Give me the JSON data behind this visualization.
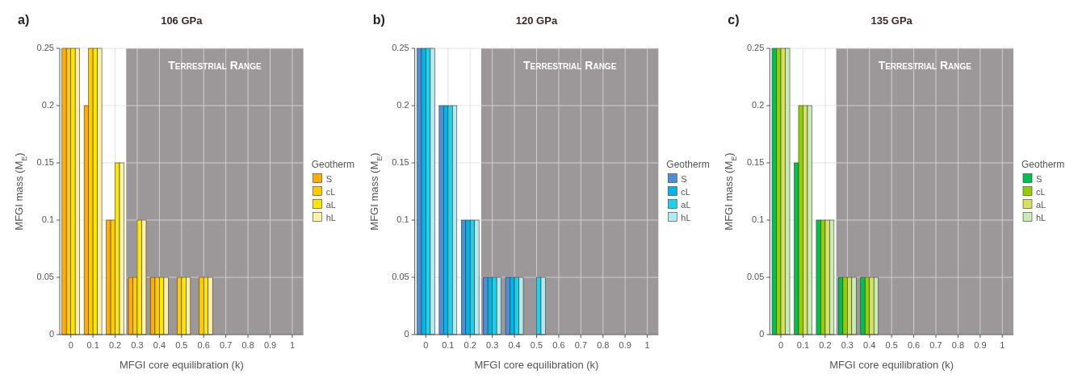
{
  "chart_data": [
    {
      "type": "bar",
      "title": "106 GPa",
      "annotations": [
        "a)"
      ],
      "xlabel": "MFGI core equilibration (k)",
      "ylabel": "MFGI mass (M$_{E}$)",
      "legend_title": "Geotherm",
      "x": [
        0,
        0.1,
        0.2,
        0.3,
        0.4,
        0.5,
        0.6,
        0.7,
        0.8,
        0.9,
        1
      ],
      "xlim": [
        -0.05,
        1.05
      ],
      "xticks": [
        0,
        0.1,
        0.2,
        0.3,
        0.4,
        0.5,
        0.6,
        0.7,
        0.8,
        0.9,
        1
      ],
      "ylim": [
        0,
        0.25
      ],
      "yticks": [
        0,
        0.05,
        0.1,
        0.15,
        0.2,
        0.25
      ],
      "grid": true,
      "legend": "right",
      "bands": [
        {
          "axis": "x",
          "from": 0.25,
          "to": 1.05,
          "label": "Terrestrial Range",
          "color": "#9c9899"
        }
      ],
      "series": [
        {
          "name": "S",
          "color": "#ffad00",
          "values": [
            0.25,
            0.2,
            0.1,
            0.05,
            0.05,
            0,
            0,
            0,
            0,
            0,
            0
          ]
        },
        {
          "name": "cL",
          "color": "#ffcc00",
          "values": [
            0.25,
            0.25,
            0.1,
            0.05,
            0.05,
            0.05,
            0.05,
            0,
            0,
            0,
            0
          ]
        },
        {
          "name": "aL",
          "color": "#ffe600",
          "values": [
            0.25,
            0.25,
            0.15,
            0.1,
            0.05,
            0.05,
            0.05,
            0,
            0,
            0,
            0
          ]
        },
        {
          "name": "hL",
          "color": "#fff1a6",
          "values": [
            0.25,
            0.25,
            0.15,
            0.1,
            0.05,
            0.05,
            0.05,
            0,
            0,
            0,
            0
          ]
        }
      ]
    },
    {
      "type": "bar",
      "title": "120 GPa",
      "annotations": [
        "b)"
      ],
      "xlabel": "MFGI core equilibration (k)",
      "ylabel": "MFGI mass (M$_{E}$)",
      "legend_title": "Geotherm",
      "x": [
        0,
        0.1,
        0.2,
        0.3,
        0.4,
        0.5,
        0.6,
        0.7,
        0.8,
        0.9,
        1
      ],
      "xlim": [
        -0.05,
        1.05
      ],
      "xticks": [
        0,
        0.1,
        0.2,
        0.3,
        0.4,
        0.5,
        0.6,
        0.7,
        0.8,
        0.9,
        1
      ],
      "ylim": [
        0,
        0.25
      ],
      "yticks": [
        0,
        0.05,
        0.1,
        0.15,
        0.2,
        0.25
      ],
      "grid": true,
      "legend": "right",
      "bands": [
        {
          "axis": "x",
          "from": 0.25,
          "to": 1.05,
          "label": "Terrestrial Range",
          "color": "#9c9899"
        }
      ],
      "series": [
        {
          "name": "S",
          "color": "#4d8fd6",
          "values": [
            0.25,
            0.2,
            0.1,
            0.05,
            0.05,
            0,
            0,
            0,
            0,
            0,
            0
          ]
        },
        {
          "name": "cL",
          "color": "#00b4e6",
          "values": [
            0.25,
            0.2,
            0.1,
            0.05,
            0.05,
            0,
            0,
            0,
            0,
            0,
            0
          ]
        },
        {
          "name": "aL",
          "color": "#1ad3ea",
          "values": [
            0.25,
            0.2,
            0.1,
            0.05,
            0.05,
            0.05,
            0,
            0,
            0,
            0,
            0
          ]
        },
        {
          "name": "hL",
          "color": "#b3eaf0",
          "values": [
            0.25,
            0.2,
            0.1,
            0.05,
            0.05,
            0.05,
            0,
            0,
            0,
            0,
            0
          ]
        }
      ]
    },
    {
      "type": "bar",
      "title": "135 GPa",
      "annotations": [
        "c)"
      ],
      "xlabel": "MFGI core equilibration (k)",
      "ylabel": "MFGI mass (M$_{E}$)",
      "legend_title": "Geotherm",
      "x": [
        0,
        0.1,
        0.2,
        0.3,
        0.4,
        0.5,
        0.6,
        0.7,
        0.8,
        0.9,
        1
      ],
      "xlim": [
        -0.05,
        1.05
      ],
      "xticks": [
        0,
        0.1,
        0.2,
        0.3,
        0.4,
        0.5,
        0.6,
        0.7,
        0.8,
        0.9,
        1
      ],
      "ylim": [
        0,
        0.25
      ],
      "yticks": [
        0,
        0.05,
        0.1,
        0.15,
        0.2,
        0.25
      ],
      "grid": true,
      "legend": "right",
      "bands": [
        {
          "axis": "x",
          "from": 0.25,
          "to": 1.05,
          "label": "Terrestrial Range",
          "color": "#9c9899"
        }
      ],
      "series": [
        {
          "name": "S",
          "color": "#00c04f",
          "values": [
            0.25,
            0.15,
            0.1,
            0.05,
            0.05,
            0,
            0,
            0,
            0,
            0,
            0
          ]
        },
        {
          "name": "cL",
          "color": "#8fd100",
          "values": [
            0.25,
            0.2,
            0.1,
            0.05,
            0.05,
            0,
            0,
            0,
            0,
            0,
            0
          ]
        },
        {
          "name": "aL",
          "color": "#d6e35a",
          "values": [
            0.25,
            0.2,
            0.1,
            0.05,
            0.05,
            0,
            0,
            0,
            0,
            0,
            0
          ]
        },
        {
          "name": "hL",
          "color": "#c9ecb5",
          "values": [
            0.25,
            0.2,
            0.1,
            0.05,
            0.05,
            0,
            0,
            0,
            0,
            0,
            0
          ]
        }
      ]
    }
  ]
}
